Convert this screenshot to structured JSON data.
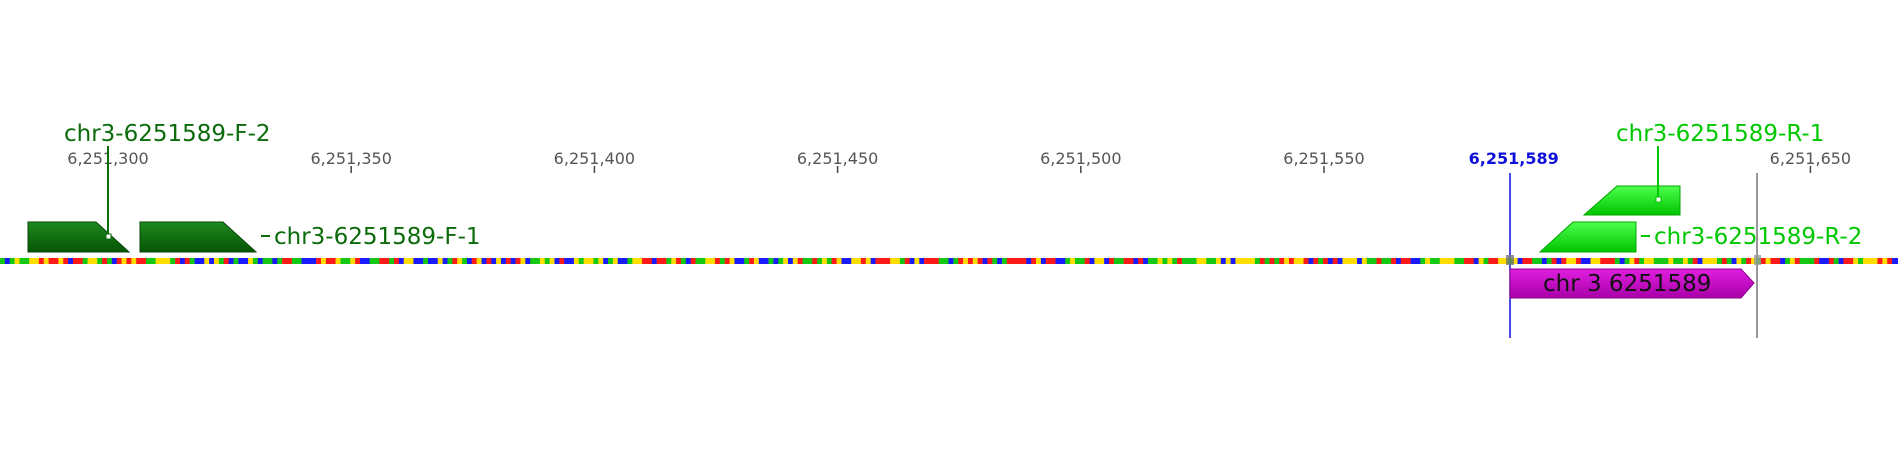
{
  "ruler": {
    "ticks": [
      {
        "label": "6,251,300",
        "pos": 6251300
      },
      {
        "label": "6,251,350",
        "pos": 6251350
      },
      {
        "label": "6,251,400",
        "pos": 6251400
      },
      {
        "label": "6,251,450",
        "pos": 6251450
      },
      {
        "label": "6,251,500",
        "pos": 6251500
      },
      {
        "label": "6,251,550",
        "pos": 6251550
      },
      {
        "label": "6,251,650",
        "pos": 6251650
      }
    ],
    "highlight": {
      "label": "6,251,589",
      "pos": 6251589
    }
  },
  "colors": {
    "primer_forward": "#0b6b0b",
    "primer_reverse": "#00d800",
    "feature": "#cc00cc",
    "highlight": "#1010dd",
    "sequence_palette": [
      "#ff1a1a",
      "#1a1aff",
      "#14c814",
      "#ffdd00"
    ]
  },
  "primers": [
    {
      "name": "chr3-6251589-F-2",
      "strand": "forward"
    },
    {
      "name": "chr3-6251589-F-1",
      "strand": "forward"
    },
    {
      "name": "chr3-6251589-R-1",
      "strand": "reverse"
    },
    {
      "name": "chr3-6251589-R-2",
      "strand": "reverse"
    }
  ],
  "feature": {
    "label": "chr 3 6251589",
    "direction": "forward"
  }
}
